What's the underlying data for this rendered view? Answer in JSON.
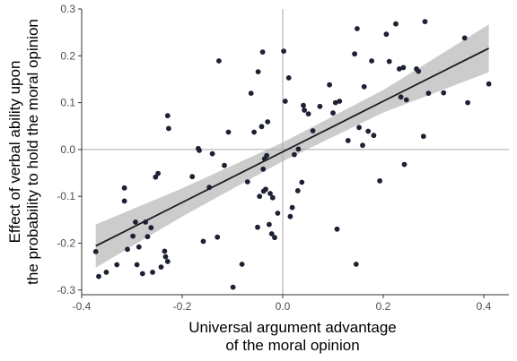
{
  "chart_data": {
    "type": "scatter",
    "title": "",
    "xlabel_lines": [
      "Universal argument advantage",
      "of the moral opinion"
    ],
    "ylabel_lines": [
      "Effect of verbal ability upon",
      "the probability to hold the moral opinion"
    ],
    "xlim": [
      -0.4,
      0.45
    ],
    "ylim": [
      -0.31,
      0.3
    ],
    "x_ticks": [
      -0.4,
      -0.2,
      0.0,
      0.2,
      0.4
    ],
    "x_tick_labels": [
      "-0.4",
      "-0.2",
      "0.0",
      "0.2",
      "0.4"
    ],
    "y_ticks": [
      -0.3,
      -0.2,
      -0.1,
      0.0,
      0.1,
      0.2,
      0.3
    ],
    "y_tick_labels": [
      "-0.3",
      "-0.2",
      "-0.1",
      "0.0",
      "0.1",
      "0.2",
      "0.3"
    ],
    "reference_lines": {
      "x": 0.0,
      "y": 0.0
    },
    "grid": false,
    "regression": {
      "x": [
        -0.372,
        -0.2,
        0.0,
        0.2,
        0.41
      ],
      "fit": [
        -0.206,
        -0.113,
        -0.005,
        0.103,
        0.216
      ],
      "lower": [
        -0.252,
        -0.143,
        -0.025,
        0.079,
        0.165
      ],
      "upper": [
        -0.16,
        -0.083,
        0.015,
        0.127,
        0.267
      ]
    },
    "points": [
      {
        "x": -0.372,
        "y": -0.218
      },
      {
        "x": -0.366,
        "y": -0.271
      },
      {
        "x": -0.351,
        "y": -0.262
      },
      {
        "x": -0.33,
        "y": -0.246
      },
      {
        "x": -0.315,
        "y": -0.082
      },
      {
        "x": -0.315,
        "y": -0.11
      },
      {
        "x": -0.309,
        "y": -0.213
      },
      {
        "x": -0.298,
        "y": -0.185
      },
      {
        "x": -0.293,
        "y": -0.155
      },
      {
        "x": -0.29,
        "y": -0.246
      },
      {
        "x": -0.286,
        "y": -0.208
      },
      {
        "x": -0.279,
        "y": -0.265
      },
      {
        "x": -0.273,
        "y": -0.155
      },
      {
        "x": -0.269,
        "y": -0.186
      },
      {
        "x": -0.262,
        "y": -0.167
      },
      {
        "x": -0.259,
        "y": -0.262
      },
      {
        "x": -0.253,
        "y": -0.059
      },
      {
        "x": -0.248,
        "y": -0.051
      },
      {
        "x": -0.242,
        "y": -0.251
      },
      {
        "x": -0.235,
        "y": -0.217
      },
      {
        "x": -0.233,
        "y": -0.229
      },
      {
        "x": -0.229,
        "y": -0.239
      },
      {
        "x": -0.229,
        "y": 0.072
      },
      {
        "x": -0.227,
        "y": 0.045
      },
      {
        "x": -0.18,
        "y": -0.058
      },
      {
        "x": -0.168,
        "y": 0.002
      },
      {
        "x": -0.166,
        "y": -0.002
      },
      {
        "x": -0.158,
        "y": -0.196
      },
      {
        "x": -0.146,
        "y": -0.081
      },
      {
        "x": -0.14,
        "y": -0.009
      },
      {
        "x": -0.13,
        "y": -0.187
      },
      {
        "x": -0.127,
        "y": 0.189
      },
      {
        "x": -0.116,
        "y": -0.034
      },
      {
        "x": -0.108,
        "y": 0.037
      },
      {
        "x": -0.099,
        "y": -0.294
      },
      {
        "x": -0.081,
        "y": -0.245
      },
      {
        "x": -0.07,
        "y": -0.069
      },
      {
        "x": -0.063,
        "y": 0.12
      },
      {
        "x": -0.057,
        "y": 0.037
      },
      {
        "x": -0.05,
        "y": -0.166
      },
      {
        "x": -0.049,
        "y": 0.166
      },
      {
        "x": -0.046,
        "y": -0.1
      },
      {
        "x": -0.042,
        "y": 0.049
      },
      {
        "x": -0.04,
        "y": 0.208
      },
      {
        "x": -0.039,
        "y": -0.042
      },
      {
        "x": -0.038,
        "y": -0.089
      },
      {
        "x": -0.036,
        "y": -0.02
      },
      {
        "x": -0.034,
        "y": -0.085
      },
      {
        "x": -0.032,
        "y": -0.013
      },
      {
        "x": -0.03,
        "y": 0.059
      },
      {
        "x": -0.027,
        "y": -0.16
      },
      {
        "x": -0.025,
        "y": -0.094
      },
      {
        "x": -0.022,
        "y": -0.18
      },
      {
        "x": -0.02,
        "y": -0.103
      },
      {
        "x": -0.016,
        "y": -0.188
      },
      {
        "x": -0.01,
        "y": -0.136
      },
      {
        "x": 0.002,
        "y": 0.21
      },
      {
        "x": 0.005,
        "y": 0.103
      },
      {
        "x": 0.012,
        "y": 0.153
      },
      {
        "x": 0.015,
        "y": -0.143
      },
      {
        "x": 0.019,
        "y": -0.124
      },
      {
        "x": 0.023,
        "y": -0.011
      },
      {
        "x": 0.03,
        "y": -0.088
      },
      {
        "x": 0.031,
        "y": 0.001
      },
      {
        "x": 0.038,
        "y": -0.07
      },
      {
        "x": 0.041,
        "y": 0.094
      },
      {
        "x": 0.043,
        "y": 0.084
      },
      {
        "x": 0.051,
        "y": 0.076
      },
      {
        "x": 0.06,
        "y": 0.04
      },
      {
        "x": 0.074,
        "y": 0.092
      },
      {
        "x": 0.093,
        "y": 0.138
      },
      {
        "x": 0.1,
        "y": 0.078
      },
      {
        "x": 0.105,
        "y": 0.1
      },
      {
        "x": 0.108,
        "y": -0.17
      },
      {
        "x": 0.113,
        "y": 0.103
      },
      {
        "x": 0.13,
        "y": 0.019
      },
      {
        "x": 0.143,
        "y": 0.204
      },
      {
        "x": 0.146,
        "y": -0.245
      },
      {
        "x": 0.148,
        "y": 0.258
      },
      {
        "x": 0.152,
        "y": 0.047
      },
      {
        "x": 0.159,
        "y": 0.009
      },
      {
        "x": 0.162,
        "y": 0.134
      },
      {
        "x": 0.17,
        "y": 0.039
      },
      {
        "x": 0.177,
        "y": 0.189
      },
      {
        "x": 0.181,
        "y": 0.03
      },
      {
        "x": 0.193,
        "y": -0.067
      },
      {
        "x": 0.206,
        "y": 0.246
      },
      {
        "x": 0.212,
        "y": 0.188
      },
      {
        "x": 0.225,
        "y": 0.268
      },
      {
        "x": 0.232,
        "y": 0.172
      },
      {
        "x": 0.235,
        "y": 0.112
      },
      {
        "x": 0.24,
        "y": 0.175
      },
      {
        "x": 0.242,
        "y": -0.032
      },
      {
        "x": 0.246,
        "y": 0.106
      },
      {
        "x": 0.266,
        "y": 0.172
      },
      {
        "x": 0.27,
        "y": 0.167
      },
      {
        "x": 0.28,
        "y": 0.028
      },
      {
        "x": 0.283,
        "y": 0.273
      },
      {
        "x": 0.29,
        "y": 0.12
      },
      {
        "x": 0.32,
        "y": 0.121
      },
      {
        "x": 0.362,
        "y": 0.238
      },
      {
        "x": 0.368,
        "y": 0.1
      },
      {
        "x": 0.41,
        "y": 0.14
      }
    ],
    "colors": {
      "point": "#1c2133",
      "fit_line": "#1a1a1a",
      "ribbon": "#cccccc",
      "reference_line": "#a8a8a8",
      "axis": "#333333",
      "tick_label": "#4d4d4d"
    }
  }
}
